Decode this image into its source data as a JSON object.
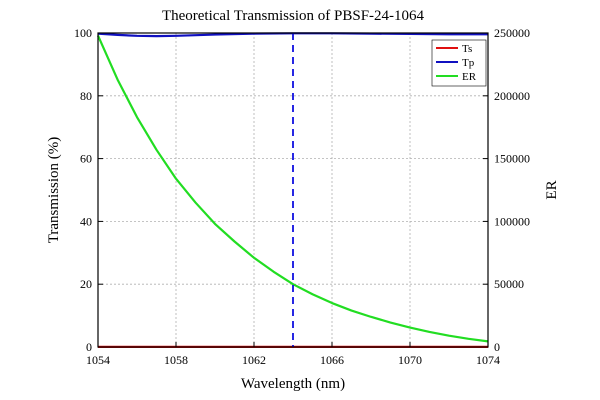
{
  "chart_data": {
    "type": "line",
    "title": "Theoretical Transmission of PBSF-24-1064",
    "xlabel": "Wavelength (nm)",
    "ylabel": "Transmission (%)",
    "y2label": "ER",
    "xlim": [
      1054,
      1074
    ],
    "ylim": [
      0,
      100
    ],
    "y2lim": [
      0,
      250000
    ],
    "xticks": [
      1054,
      1058,
      1062,
      1066,
      1070,
      1074
    ],
    "yticks": [
      0,
      20,
      40,
      60,
      80,
      100
    ],
    "y2ticks": [
      0,
      50000,
      100000,
      150000,
      200000,
      250000
    ],
    "grid": true,
    "legend_position": "top-right",
    "reference_line": {
      "x": 1064,
      "color": "#1010e0",
      "style": "dashed"
    },
    "series": [
      {
        "name": "Ts",
        "axis": "left",
        "color": "#e01010",
        "x": [
          1054,
          1056,
          1058,
          1060,
          1062,
          1064,
          1066,
          1068,
          1070,
          1072,
          1074
        ],
        "y": [
          0.04,
          0.04,
          0.04,
          0.04,
          0.04,
          0.04,
          0.04,
          0.04,
          0.04,
          0.04,
          0.04
        ]
      },
      {
        "name": "Tp",
        "axis": "left",
        "color": "#1010c0",
        "x": [
          1054,
          1055,
          1056,
          1057,
          1058,
          1059,
          1060,
          1062,
          1064,
          1066,
          1068,
          1070,
          1072,
          1074
        ],
        "y": [
          99.8,
          99.4,
          99.1,
          99.0,
          99.1,
          99.3,
          99.5,
          99.8,
          99.9,
          99.9,
          99.8,
          99.7,
          99.6,
          99.6
        ]
      },
      {
        "name": "ER",
        "axis": "right",
        "color": "#22dd22",
        "x": [
          1054,
          1055,
          1056,
          1057,
          1058,
          1059,
          1060,
          1061,
          1062,
          1063,
          1064,
          1065,
          1066,
          1067,
          1068,
          1069,
          1070,
          1071,
          1072,
          1073,
          1074
        ],
        "y": [
          248000,
          213000,
          183000,
          157000,
          134000,
          115000,
          98000,
          84000,
          71000,
          60000,
          50000,
          42000,
          35000,
          29000,
          24000,
          19500,
          15500,
          12000,
          9000,
          6500,
          4500
        ]
      }
    ]
  }
}
